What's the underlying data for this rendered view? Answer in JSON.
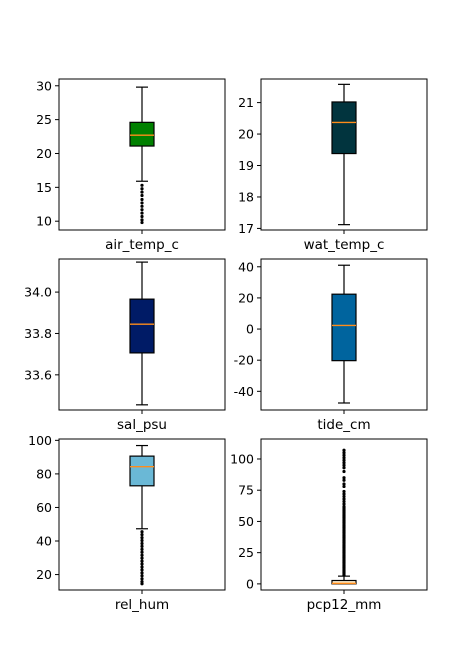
{
  "chart_data": [
    {
      "type": "boxplot",
      "xlabel": "air_temp_c",
      "box_color": "#008000",
      "ylim": [
        8.7,
        31.0
      ],
      "yticks": [
        10,
        15,
        20,
        25,
        30
      ],
      "stats": {
        "whisker_low": 15.9,
        "q1": 21.1,
        "median": 22.7,
        "q3": 24.6,
        "whisker_high": 29.8
      },
      "outliers": [
        15.3,
        14.8,
        14.3,
        13.8,
        13.2,
        12.7,
        12.2,
        11.7,
        11.2,
        10.7,
        10.2,
        9.8
      ]
    },
    {
      "type": "boxplot",
      "xlabel": "wat_temp_c",
      "box_color": "#01343e",
      "ylim": [
        16.95,
        21.75
      ],
      "yticks": [
        17,
        18,
        19,
        20,
        21
      ],
      "stats": {
        "whisker_low": 17.12,
        "q1": 19.38,
        "median": 20.37,
        "q3": 21.02,
        "whisker_high": 21.58
      },
      "outliers": []
    },
    {
      "type": "boxplot",
      "xlabel": "sal_psu",
      "box_color": "#001b66",
      "ylim": [
        33.43,
        34.16
      ],
      "yticks": [
        33.6,
        33.8,
        34.0
      ],
      "stats": {
        "whisker_low": 33.455,
        "q1": 33.706,
        "median": 33.845,
        "q3": 33.966,
        "whisker_high": 34.145
      },
      "outliers": []
    },
    {
      "type": "boxplot",
      "xlabel": "tide_cm",
      "box_color": "#00649e",
      "ylim": [
        -52,
        45
      ],
      "yticks": [
        -40,
        -20,
        0,
        20,
        40
      ],
      "stats": {
        "whisker_low": -47.5,
        "q1": -20.3,
        "median": 2.3,
        "q3": 22.4,
        "whisker_high": 41.0
      },
      "outliers": []
    },
    {
      "type": "boxplot",
      "xlabel": "rel_hum",
      "box_color": "#6ab8d6",
      "ylim": [
        10.8,
        100.8
      ],
      "yticks": [
        20,
        40,
        60,
        80,
        100
      ],
      "stats": {
        "whisker_low": 47.3,
        "q1": 72.9,
        "median": 84.3,
        "q3": 90.6,
        "whisker_high": 96.9
      },
      "outliers": [
        45.5,
        43.8,
        42.0,
        40.3,
        38.5,
        36.8,
        35.0,
        33.3,
        31.5,
        29.8,
        28.0,
        26.3,
        24.5,
        22.8,
        21.0,
        19.3,
        17.5,
        15.8,
        14.5
      ]
    },
    {
      "type": "boxplot",
      "xlabel": "pcp12_mm",
      "box_color": "#fff3d4",
      "ylim": [
        -4.9,
        116.0
      ],
      "yticks": [
        0,
        25,
        50,
        75,
        100
      ],
      "stats": {
        "whisker_low": 0.0,
        "q1": 0.0,
        "median": 0.4,
        "q3": 2.7,
        "whisker_high": 6.2
      },
      "outliers": [
        7.0,
        8.0,
        9.0,
        10.0,
        11.0,
        12.0,
        13.0,
        14.0,
        15.0,
        16.0,
        17.0,
        18.0,
        19.0,
        20.0,
        21.0,
        22.0,
        23.0,
        24.0,
        25.0,
        26.0,
        27.0,
        28.0,
        29.0,
        30.0,
        31.0,
        32.0,
        33.0,
        34.0,
        35.0,
        36.0,
        37.0,
        38.0,
        39.0,
        40.0,
        41.0,
        42.0,
        43.0,
        44.0,
        45.0,
        46.0,
        47.0,
        48.0,
        49.0,
        50.0,
        51.0,
        52.0,
        53.0,
        54.0,
        55.0,
        56.0,
        57.0,
        58.0,
        59.0,
        60.0,
        61.0,
        62.0,
        64.0,
        66.0,
        68.0,
        70.0,
        72.0,
        74.0,
        78.0,
        80.0,
        83.0,
        85.0,
        90.0,
        93.0,
        95.0,
        97.0,
        99.0,
        101.0,
        103.0,
        105.0,
        107.0
      ]
    }
  ]
}
